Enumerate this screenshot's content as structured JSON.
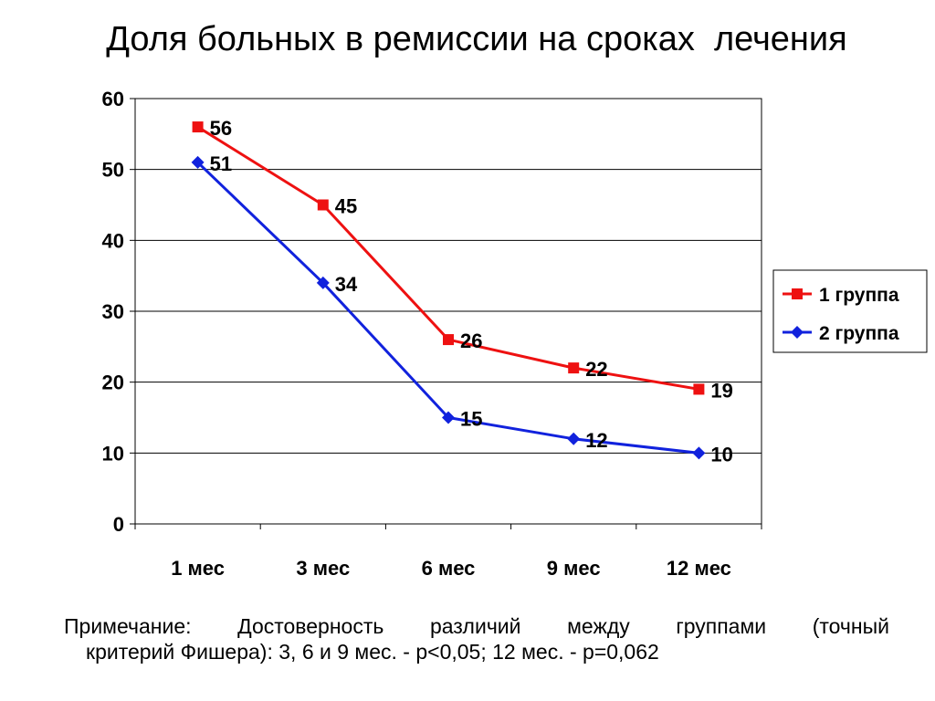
{
  "title": "Доля больных в ремиссии на сроках  лечения",
  "note": {
    "line1": "Примечание: Достоверность различий между группами (точный",
    "line2": "критерий Фишера): 3, 6 и 9 мес. - p<0,05;  12 мес. - p=0,062"
  },
  "chart_data": {
    "type": "line",
    "title": "Доля больных в ремиссии на сроках  лечения",
    "categories": [
      "1 мес",
      "3 мес",
      "6 мес",
      "9 мес",
      "12 мес"
    ],
    "series": [
      {
        "name": "1 группа",
        "values": [
          56,
          45,
          26,
          22,
          19
        ],
        "color": "#ee1111",
        "marker": "square"
      },
      {
        "name": "2 группа",
        "values": [
          51,
          34,
          15,
          12,
          10
        ],
        "color": "#1122dd",
        "marker": "diamond"
      }
    ],
    "ylim": [
      0,
      60
    ],
    "yticks": [
      0,
      10,
      20,
      30,
      40,
      50,
      60
    ],
    "grid": true,
    "legend": "right",
    "data_labels": true
  }
}
